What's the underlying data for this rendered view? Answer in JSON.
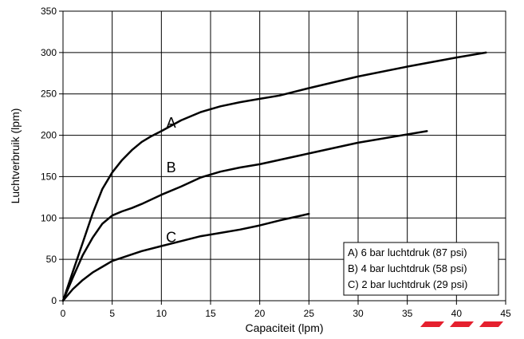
{
  "chart_data": {
    "type": "line",
    "title": "",
    "xlabel": "Capaciteit (lpm)",
    "ylabel": "Luchtverbruik (lpm)",
    "xlim": [
      0,
      45
    ],
    "ylim": [
      0,
      350
    ],
    "xticks": [
      0,
      5,
      10,
      15,
      20,
      25,
      30,
      35,
      40,
      45
    ],
    "yticks": [
      0,
      50,
      100,
      150,
      200,
      250,
      300,
      350
    ],
    "grid": true,
    "legend_position": "bottom-right",
    "legend": [
      "A) 6 bar luchtdruk (87 psi)",
      "B) 4 bar luchtdruk (58 psi)",
      "C) 2 bar luchtdruk (29 psi)"
    ],
    "series": [
      {
        "name": "A",
        "x": [
          0,
          1,
          2,
          3,
          4,
          5,
          6,
          7,
          8,
          9,
          10,
          12,
          14,
          16,
          18,
          20,
          22,
          25,
          30,
          35,
          40,
          43
        ],
        "y": [
          0,
          35,
          70,
          105,
          135,
          155,
          170,
          182,
          192,
          199,
          205,
          218,
          228,
          235,
          240,
          244,
          248,
          257,
          271,
          283,
          294,
          300
        ]
      },
      {
        "name": "B",
        "x": [
          0,
          1,
          2,
          3,
          4,
          5,
          6,
          7,
          8,
          10,
          12,
          14,
          16,
          18,
          20,
          25,
          30,
          35,
          37
        ],
        "y": [
          0,
          28,
          55,
          76,
          93,
          103,
          108,
          112,
          117,
          128,
          138,
          149,
          156,
          161,
          165,
          178,
          191,
          201,
          205
        ]
      },
      {
        "name": "C",
        "x": [
          0,
          1,
          2,
          3,
          4,
          5,
          6,
          7,
          8,
          10,
          12,
          14,
          16,
          18,
          20,
          22,
          25
        ],
        "y": [
          0,
          14,
          25,
          34,
          41,
          48,
          52,
          56,
          60,
          66,
          72,
          78,
          82,
          86,
          91,
          97,
          105
        ]
      }
    ]
  },
  "accent_color": "#e5202e"
}
